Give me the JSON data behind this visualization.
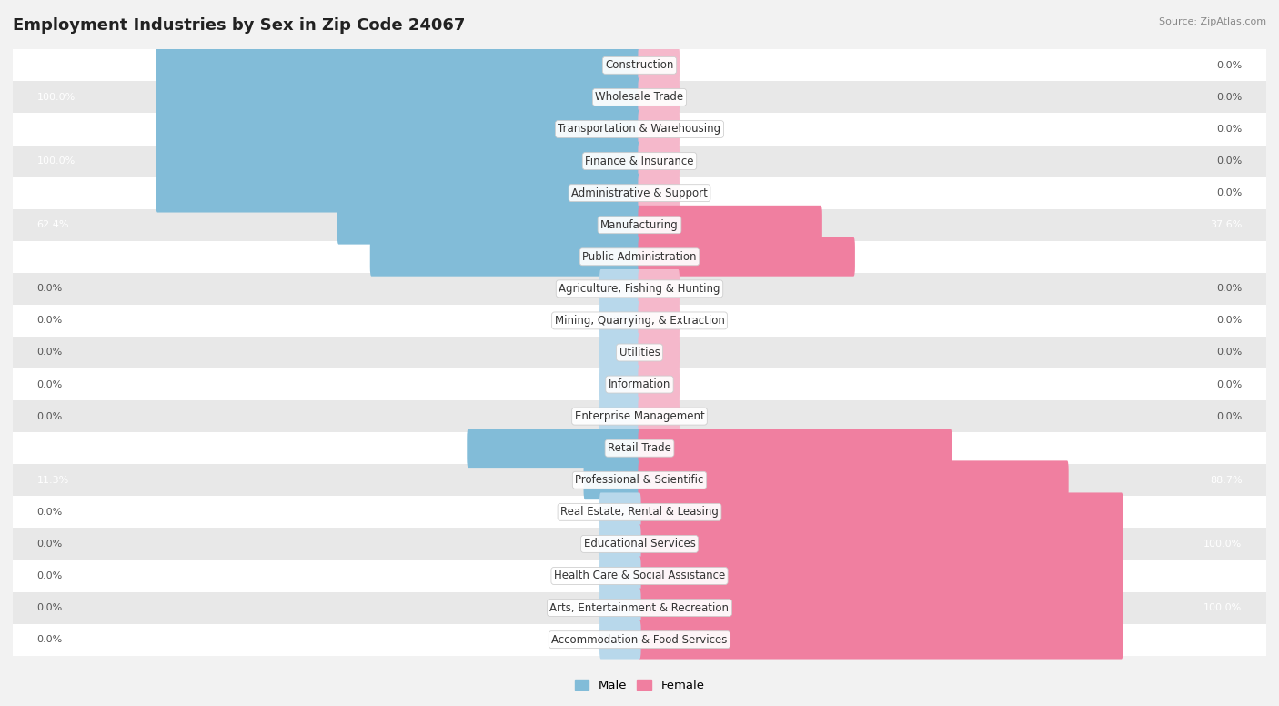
{
  "title": "Employment Industries by Sex in Zip Code 24067",
  "source": "Source: ZipAtlas.com",
  "categories": [
    "Construction",
    "Wholesale Trade",
    "Transportation & Warehousing",
    "Finance & Insurance",
    "Administrative & Support",
    "Manufacturing",
    "Public Administration",
    "Agriculture, Fishing & Hunting",
    "Mining, Quarrying, & Extraction",
    "Utilities",
    "Information",
    "Enterprise Management",
    "Retail Trade",
    "Professional & Scientific",
    "Real Estate, Rental & Leasing",
    "Educational Services",
    "Health Care & Social Assistance",
    "Arts, Entertainment & Recreation",
    "Accommodation & Food Services"
  ],
  "male": [
    100.0,
    100.0,
    100.0,
    100.0,
    100.0,
    62.4,
    55.6,
    0.0,
    0.0,
    0.0,
    0.0,
    0.0,
    35.5,
    11.3,
    0.0,
    0.0,
    0.0,
    0.0,
    0.0
  ],
  "female": [
    0.0,
    0.0,
    0.0,
    0.0,
    0.0,
    37.6,
    44.4,
    0.0,
    0.0,
    0.0,
    0.0,
    0.0,
    64.5,
    88.7,
    100.0,
    100.0,
    100.0,
    100.0,
    100.0
  ],
  "male_color": "#82bcd8",
  "female_color": "#f07fa0",
  "bg_color": "#f2f2f2",
  "title_fontsize": 13,
  "source_fontsize": 8,
  "label_fontsize": 8.5,
  "pct_fontsize": 8.0,
  "bar_height": 0.62
}
